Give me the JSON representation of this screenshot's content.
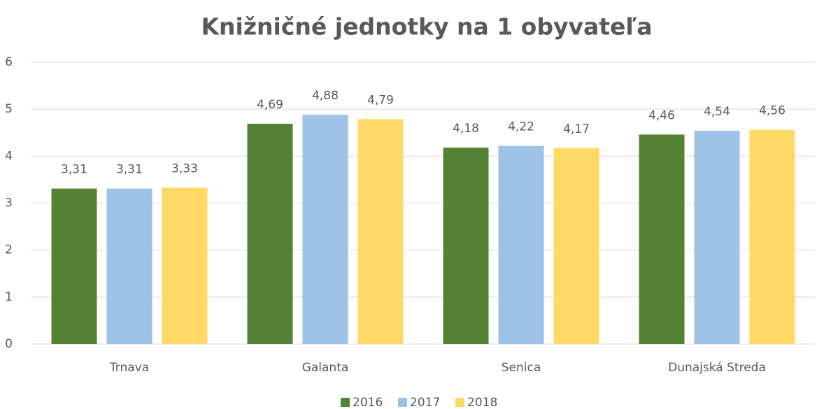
{
  "chart_data": {
    "type": "bar",
    "title": "Knižničné jednotky na 1 obyvateľa",
    "categories": [
      "Trnava",
      "Galanta",
      "Senica",
      "Dunajská Streda"
    ],
    "series": [
      {
        "name": "2016",
        "color": "#548235",
        "values": [
          3.31,
          4.69,
          4.18,
          4.46
        ],
        "value_labels": [
          "3,31",
          "4,69",
          "4,18",
          "4,46"
        ]
      },
      {
        "name": "2017",
        "color": "#9dc3e6",
        "values": [
          3.31,
          4.88,
          4.22,
          4.54
        ],
        "value_labels": [
          "3,31",
          "4,88",
          "4,22",
          "4,54"
        ]
      },
      {
        "name": "2018",
        "color": "#ffd966",
        "values": [
          3.33,
          4.79,
          4.17,
          4.56
        ],
        "value_labels": [
          "3,33",
          "4,79",
          "4,17",
          "4,56"
        ]
      }
    ],
    "ylim": [
      0,
      6
    ],
    "yticks": [
      0,
      1,
      2,
      3,
      4,
      5,
      6
    ],
    "grid": true,
    "legend": "bottom"
  }
}
